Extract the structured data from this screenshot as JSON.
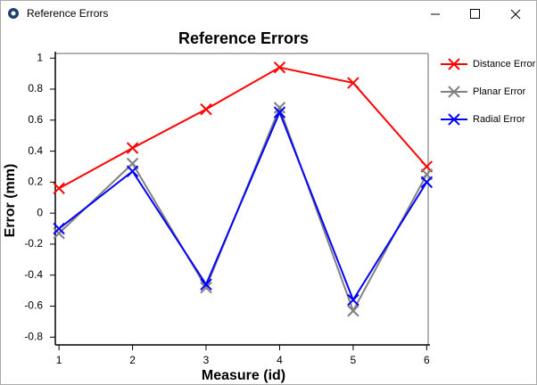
{
  "window": {
    "title": "Reference Errors"
  },
  "chart_data": {
    "type": "line",
    "title": "Reference Errors",
    "x_label": "Measure (id)",
    "y_label": "Error (mm)",
    "x": [
      1,
      2,
      3,
      4,
      5,
      6
    ],
    "series": [
      {
        "name": "Distance Error",
        "color": "#ff0000",
        "values": [
          0.16,
          0.42,
          0.67,
          0.94,
          0.84,
          0.3
        ]
      },
      {
        "name": "Planar Error",
        "color": "#808080",
        "values": [
          -0.13,
          0.32,
          -0.48,
          0.68,
          -0.63,
          0.25
        ]
      },
      {
        "name": "Radial Error",
        "color": "#0000ff",
        "values": [
          -0.1,
          0.27,
          -0.46,
          0.65,
          -0.56,
          0.2
        ]
      }
    ],
    "xlim": [
      0.95,
      6.02
    ],
    "xticks": [
      1,
      2,
      3,
      4,
      5,
      6
    ],
    "ylim": [
      -0.85,
      1.03
    ],
    "yticks": [
      -0.8,
      -0.6,
      -0.4,
      -0.2,
      0,
      0.2,
      0.4,
      0.6,
      0.8,
      1
    ],
    "marker": "x",
    "grid": false,
    "legend": "right"
  }
}
